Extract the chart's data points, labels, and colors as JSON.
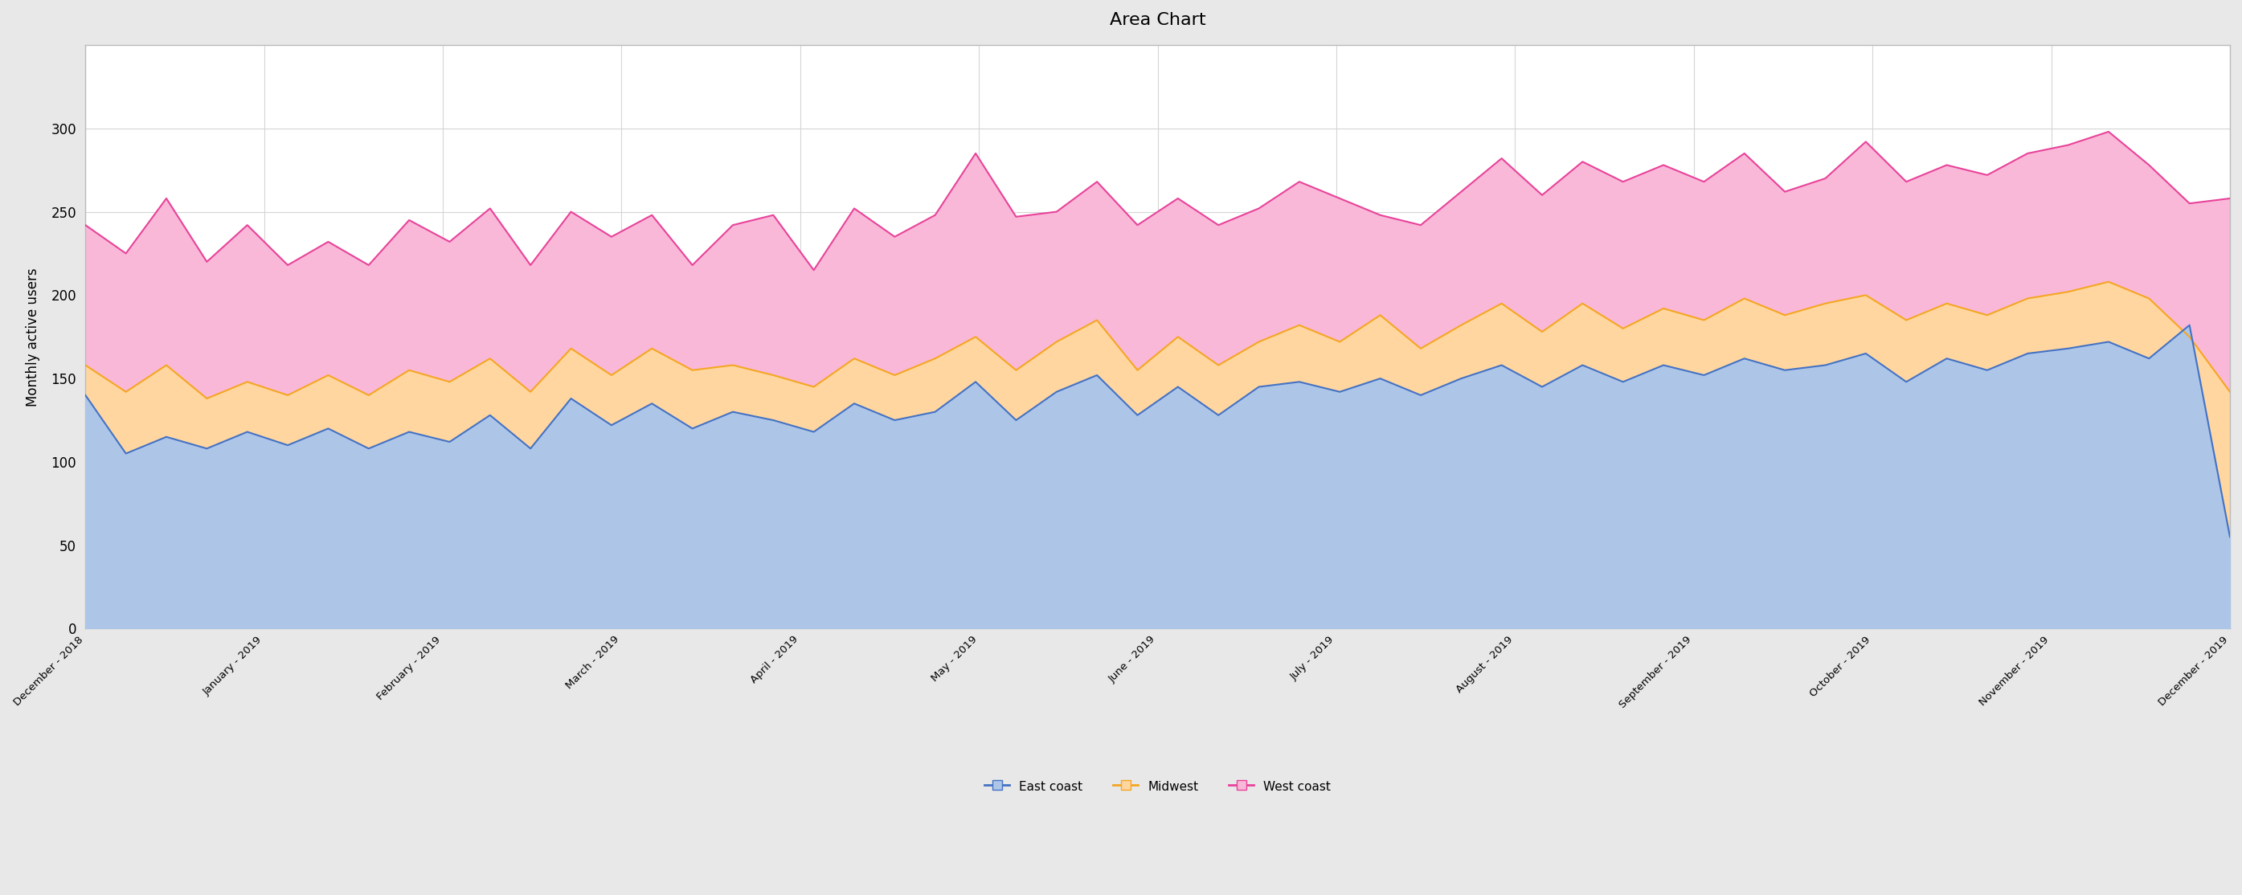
{
  "title": "Area Chart",
  "ylabel": "Monthly active users",
  "background_color": "#e8e8e8",
  "chart_bg": "#ffffff",
  "title_fontsize": 16,
  "tick_labels": [
    "December - 2018",
    "January - 2019",
    "February - 2019",
    "March - 2019",
    "April - 2019",
    "May - 2019",
    "June - 2019",
    "July - 2019",
    "August - 2019",
    "September - 2019",
    "October - 2019",
    "November - 2019",
    "December - 2019"
  ],
  "east_coast": [
    140,
    105,
    115,
    108,
    118,
    110,
    120,
    108,
    118,
    112,
    128,
    108,
    138,
    122,
    135,
    120,
    130,
    125,
    118,
    135,
    125,
    130,
    148,
    125,
    142,
    152,
    128,
    145,
    128,
    145,
    148,
    142,
    150,
    140,
    150,
    158,
    145,
    158,
    148,
    158,
    152,
    162,
    155,
    158,
    165,
    148,
    162,
    155,
    165,
    168,
    172,
    162,
    182,
    55
  ],
  "midwest": [
    158,
    142,
    158,
    138,
    148,
    140,
    152,
    140,
    155,
    148,
    162,
    142,
    168,
    152,
    168,
    155,
    158,
    152,
    145,
    162,
    152,
    162,
    175,
    155,
    172,
    185,
    155,
    175,
    158,
    172,
    182,
    172,
    188,
    168,
    182,
    195,
    178,
    195,
    180,
    192,
    185,
    198,
    188,
    195,
    200,
    185,
    195,
    188,
    198,
    202,
    208,
    198,
    175,
    142
  ],
  "west_coast": [
    242,
    225,
    258,
    220,
    242,
    218,
    232,
    218,
    245,
    232,
    252,
    218,
    250,
    235,
    248,
    218,
    242,
    248,
    215,
    252,
    235,
    248,
    285,
    247,
    250,
    268,
    242,
    258,
    242,
    252,
    268,
    258,
    248,
    242,
    262,
    282,
    260,
    280,
    268,
    278,
    268,
    285,
    262,
    270,
    292,
    268,
    278,
    272,
    285,
    290,
    298,
    278,
    255,
    258
  ],
  "east_color": "#adc6e8",
  "east_line_color": "#4472c4",
  "midwest_color": "#ffd6a0",
  "midwest_line_color": "#f5a623",
  "west_color": "#f9b8d8",
  "west_line_color": "#e8439a",
  "ylim": [
    0,
    350
  ],
  "yticks": [
    0,
    50,
    100,
    150,
    200,
    250,
    300
  ]
}
